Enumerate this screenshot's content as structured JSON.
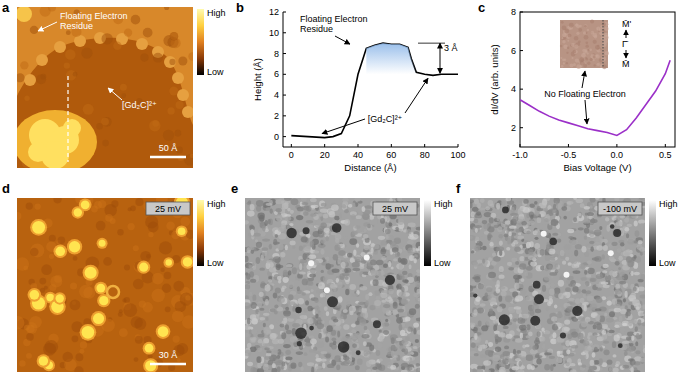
{
  "images": [
    {
      "label": "a",
      "annotations": [
        {
          "lines": [
            "Floating Electron",
            "Residue"
          ]
        },
        {
          "lines": [
            "[Gd₂C]²⁺"
          ]
        }
      ],
      "scale_bar": "50 Å",
      "colorbar": [
        "High",
        "Low"
      ]
    },
    {
      "label": "d",
      "bias": "25 mV",
      "scale_bar": "30 Å",
      "colorbar": [
        "High",
        "Low"
      ]
    },
    {
      "label": "e",
      "bias": "25 mV",
      "colorbar": [
        "High",
        "Low"
      ]
    },
    {
      "label": "f",
      "bias": "-100 mV",
      "colorbar": [
        "High",
        "Low"
      ]
    }
  ],
  "chart_data": [
    {
      "label": "b",
      "type": "line",
      "x_label": "Distance (Å)",
      "y_label": "Height (Å)",
      "x": [
        0,
        10,
        20,
        25,
        30,
        35,
        40,
        45,
        50,
        55,
        60,
        65,
        70,
        72,
        75,
        80,
        85,
        90,
        95,
        100
      ],
      "values": [
        0.1,
        0,
        -0.1,
        0,
        0.3,
        2,
        6,
        8.5,
        8.8,
        9,
        8.9,
        8.9,
        8.6,
        7.5,
        6.2,
        6,
        5.9,
        6,
        6,
        6
      ],
      "color": "#000000",
      "xlim": [
        -5,
        100
      ],
      "ylim": [
        -1,
        12
      ],
      "xticks": [
        0,
        20,
        40,
        60,
        80,
        100
      ],
      "yticks": [
        0,
        2,
        4,
        6,
        8,
        10,
        12
      ],
      "annotations": [
        {
          "lines": [
            "Floating Electron",
            "Residue"
          ]
        },
        {
          "lines": [
            "[Gd₂C]²⁺"
          ]
        }
      ],
      "step": {
        "label": "3 Å",
        "from": 6,
        "to": 9
      }
    },
    {
      "label": "c",
      "type": "line",
      "x_label": "Bias Voltage (V)",
      "y_label": "dI/dV (arb. units)",
      "x": [
        -1,
        -0.9,
        -0.8,
        -0.7,
        -0.6,
        -0.5,
        -0.4,
        -0.3,
        -0.2,
        -0.1,
        0,
        0.1,
        0.2,
        0.3,
        0.4,
        0.5,
        0.55
      ],
      "values": [
        3.45,
        3.15,
        2.85,
        2.6,
        2.4,
        2.25,
        2.1,
        1.95,
        1.85,
        1.75,
        1.6,
        1.9,
        2.5,
        3.2,
        3.9,
        4.8,
        5.5
      ],
      "color": "#9b30c8",
      "xlim": [
        -1,
        0.6
      ],
      "ylim": [
        1,
        8
      ],
      "xticks": [
        {
          "value": -1,
          "label": "-1.0"
        },
        {
          "value": -0.5,
          "label": "-0.5"
        },
        {
          "value": 0,
          "label": "0.0"
        },
        {
          "value": 0.5,
          "label": "0.5"
        }
      ],
      "yticks": [
        2,
        4,
        6,
        8
      ],
      "annotations": [
        {
          "lines": [
            "No Floating Electron"
          ]
        }
      ],
      "inset_labels": [
        "M̄'",
        "Γ̄",
        "M̄"
      ]
    }
  ]
}
